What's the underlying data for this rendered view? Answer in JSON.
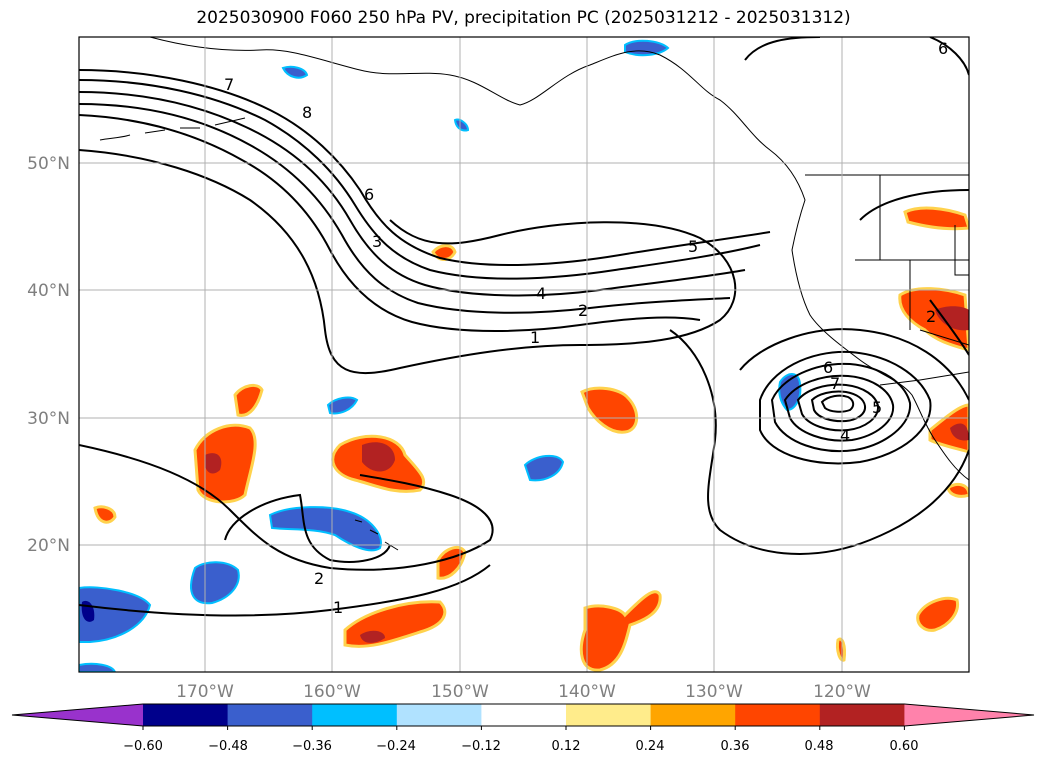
{
  "title": "2025030900 F060 250 hPa PV, precipitation PC (2025031212 - 2025031312)",
  "map": {
    "lat_labels": [
      "50°N",
      "40°N",
      "30°N",
      "20°N"
    ],
    "lon_labels": [
      "170°W",
      "160°W",
      "150°W",
      "140°W",
      "130°W",
      "120°W"
    ],
    "contour_labels": [
      "7",
      "8",
      "6",
      "3",
      "5",
      "4",
      "2",
      "1",
      "6",
      "7",
      "5",
      "4",
      "2",
      "1",
      "2",
      "6"
    ],
    "pv_contour_color": "#000000",
    "coastline_color": "#000000",
    "gridline_color": "#b0b0b0"
  },
  "colorbar": {
    "ticks": [
      "−0.60",
      "−0.48",
      "−0.36",
      "−0.24",
      "−0.12",
      "0.12",
      "0.24",
      "0.36",
      "0.48",
      "0.60"
    ],
    "colors": [
      "#9932cc",
      "#00008b",
      "#3a5fcd",
      "#00bfff",
      "#b0e2ff",
      "#ffffff",
      "#ffec8b",
      "#ffa500",
      "#ff4500",
      "#b22222",
      "#ff82ab"
    ]
  }
}
